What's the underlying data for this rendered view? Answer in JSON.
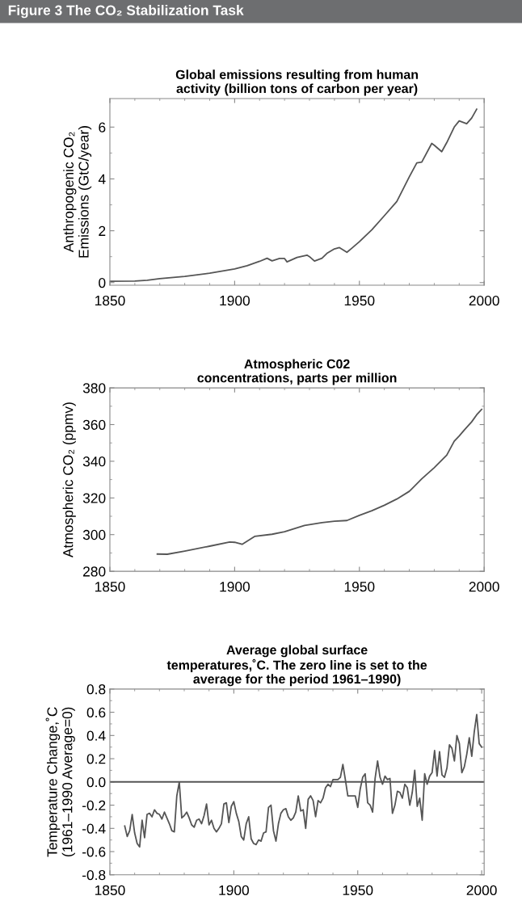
{
  "chart_data": [
    {
      "type": "line",
      "title": "Global emissions resulting from human\nactivity (billion tons of carbon per year)",
      "ylabel": "Anthropogenic CO₂\nEmissions (GtC/year)",
      "annotations": [
        "Figure 3 The CO₂ Stabilization Task"
      ],
      "x": [
        1850,
        1860,
        1865,
        1870,
        1880,
        1890,
        1900,
        1905,
        1910,
        1913,
        1915,
        1918,
        1920,
        1921,
        1925,
        1929,
        1930,
        1932,
        1935,
        1937,
        1940,
        1942,
        1945,
        1947,
        1950,
        1955,
        1960,
        1965,
        1970,
        1973,
        1975,
        1979,
        1980,
        1983,
        1985,
        1988,
        1990,
        1993,
        1995,
        1997
      ],
      "series": [
        {
          "color": "#555555",
          "values": [
            0.05,
            0.06,
            0.09,
            0.15,
            0.24,
            0.36,
            0.53,
            0.65,
            0.82,
            0.94,
            0.84,
            0.93,
            0.93,
            0.8,
            0.97,
            1.06,
            1.0,
            0.83,
            0.94,
            1.13,
            1.3,
            1.35,
            1.17,
            1.33,
            1.58,
            2.04,
            2.58,
            3.13,
            4.08,
            4.62,
            4.65,
            5.37,
            5.3,
            5.05,
            5.4,
            6.0,
            6.24,
            6.13,
            6.35,
            6.69
          ]
        }
      ],
      "xlim": [
        1850,
        2000
      ],
      "xticks": [
        1850,
        1900,
        1950,
        2000
      ],
      "ylim": [
        -0.1,
        7.1
      ],
      "yticks": [
        0,
        2,
        4,
        6
      ],
      "grid": false,
      "legend": false
    },
    {
      "type": "line",
      "title": "Atmospheric C02\nconcentrations, parts per million",
      "ylabel": "Atmospheric CO₂ (ppmv)",
      "x": [
        1869,
        1873,
        1880,
        1890,
        1898,
        1900,
        1903,
        1908,
        1915,
        1920,
        1928,
        1935,
        1940,
        1945,
        1950,
        1955,
        1960,
        1965,
        1970,
        1975,
        1980,
        1985,
        1988,
        1990,
        1992,
        1995,
        1997,
        1999
      ],
      "series": [
        {
          "color": "#555555",
          "values": [
            289.4,
            289.3,
            291,
            293.7,
            296,
            295.8,
            294.7,
            299,
            300.2,
            301.6,
            305,
            306.5,
            307.3,
            307.7,
            310.5,
            313,
            316,
            319.4,
            323.6,
            330.4,
            336.5,
            343.3,
            350.9,
            353.8,
            357,
            361.5,
            365.3,
            368.3
          ]
        }
      ],
      "xlim": [
        1850,
        2000
      ],
      "xticks": [
        1850,
        1900,
        1950,
        2000
      ],
      "ylim": [
        280,
        380
      ],
      "yticks": [
        280,
        300,
        320,
        340,
        360,
        380
      ],
      "grid": false,
      "legend": false
    },
    {
      "type": "line",
      "title": "Average global surface\ntemperatures,˚C. The zero line is set to the\naverage for the period 1961–1990)",
      "ylabel": "Temperature Change,˚C\n(1961–1990 Average=0)",
      "x": [
        1856,
        1857,
        1858,
        1859,
        1860,
        1861,
        1862,
        1863,
        1864,
        1865,
        1866,
        1867,
        1868,
        1869,
        1870,
        1871,
        1872,
        1873,
        1874,
        1875,
        1876,
        1877,
        1878,
        1879,
        1880,
        1881,
        1882,
        1883,
        1884,
        1885,
        1886,
        1887,
        1888,
        1889,
        1890,
        1891,
        1892,
        1893,
        1894,
        1895,
        1896,
        1897,
        1898,
        1899,
        1900,
        1901,
        1902,
        1903,
        1904,
        1905,
        1906,
        1907,
        1908,
        1909,
        1910,
        1911,
        1912,
        1913,
        1914,
        1915,
        1916,
        1917,
        1918,
        1919,
        1920,
        1921,
        1922,
        1923,
        1924,
        1925,
        1926,
        1927,
        1928,
        1929,
        1930,
        1931,
        1932,
        1933,
        1934,
        1935,
        1936,
        1937,
        1938,
        1939,
        1940,
        1941,
        1942,
        1943,
        1944,
        1945,
        1946,
        1947,
        1948,
        1949,
        1950,
        1951,
        1952,
        1953,
        1954,
        1955,
        1956,
        1957,
        1958,
        1959,
        1960,
        1961,
        1962,
        1963,
        1964,
        1965,
        1966,
        1967,
        1968,
        1969,
        1970,
        1971,
        1972,
        1973,
        1974,
        1975,
        1976,
        1977,
        1978,
        1979,
        1980,
        1981,
        1982,
        1983,
        1984,
        1985,
        1986,
        1987,
        1988,
        1989,
        1990,
        1991,
        1992,
        1993,
        1994,
        1995,
        1996,
        1997,
        1998,
        1999,
        2000
      ],
      "series": [
        {
          "color": "#555555",
          "values": [
            -0.38,
            -0.47,
            -0.42,
            -0.28,
            -0.44,
            -0.53,
            -0.56,
            -0.33,
            -0.48,
            -0.28,
            -0.27,
            -0.3,
            -0.24,
            -0.27,
            -0.28,
            -0.32,
            -0.26,
            -0.31,
            -0.36,
            -0.42,
            -0.43,
            -0.12,
            0.0,
            -0.31,
            -0.29,
            -0.26,
            -0.31,
            -0.37,
            -0.39,
            -0.33,
            -0.32,
            -0.36,
            -0.29,
            -0.19,
            -0.37,
            -0.33,
            -0.4,
            -0.43,
            -0.4,
            -0.36,
            -0.19,
            -0.18,
            -0.35,
            -0.21,
            -0.17,
            -0.27,
            -0.34,
            -0.47,
            -0.5,
            -0.36,
            -0.3,
            -0.49,
            -0.53,
            -0.54,
            -0.5,
            -0.51,
            -0.44,
            -0.43,
            -0.22,
            -0.2,
            -0.42,
            -0.51,
            -0.36,
            -0.27,
            -0.24,
            -0.23,
            -0.3,
            -0.33,
            -0.31,
            -0.26,
            -0.12,
            -0.25,
            -0.24,
            -0.4,
            -0.15,
            -0.12,
            -0.16,
            -0.3,
            -0.16,
            -0.18,
            -0.14,
            -0.05,
            -0.02,
            -0.04,
            0.02,
            0.02,
            0.02,
            0.04,
            0.15,
            0.02,
            -0.12,
            -0.12,
            -0.12,
            -0.12,
            -0.22,
            -0.06,
            0.04,
            0.07,
            -0.18,
            -0.2,
            -0.26,
            0.03,
            0.18,
            0.04,
            -0.02,
            0.05,
            0.02,
            0.03,
            -0.27,
            -0.2,
            -0.08,
            -0.09,
            -0.14,
            -0.02,
            -0.05,
            -0.2,
            -0.09,
            0.1,
            -0.21,
            -0.14,
            -0.33,
            0.07,
            -0.02,
            0.05,
            0.08,
            0.27,
            0.05,
            0.26,
            0.06,
            0.04,
            0.12,
            0.32,
            0.29,
            0.18,
            0.4,
            0.33,
            0.08,
            0.13,
            0.24,
            0.38,
            0.22,
            0.43,
            0.58,
            0.33,
            0.3
          ]
        }
      ],
      "xlim": [
        1850,
        2001
      ],
      "xticks": [
        1850,
        1900,
        1950,
        2000
      ],
      "ylim": [
        -0.8,
        0.8
      ],
      "yticks": [
        {
          "value": -0.8,
          "label": "-0.8"
        },
        {
          "value": -0.6,
          "label": "-0.6"
        },
        {
          "value": -0.4,
          "label": "-0.4"
        },
        {
          "value": -0.2,
          "label": "-0.2"
        },
        {
          "value": 0,
          "label": "0.0"
        },
        {
          "value": 0.2,
          "label": "0.2"
        },
        {
          "value": 0.4,
          "label": "0.4"
        },
        {
          "value": 0.6,
          "label": "0.6"
        },
        {
          "value": 0.8,
          "label": "0.8"
        }
      ],
      "ref_lines": [
        {
          "axis": "y",
          "value": 0,
          "color": "#555555"
        }
      ],
      "grid": false,
      "legend": false
    }
  ]
}
